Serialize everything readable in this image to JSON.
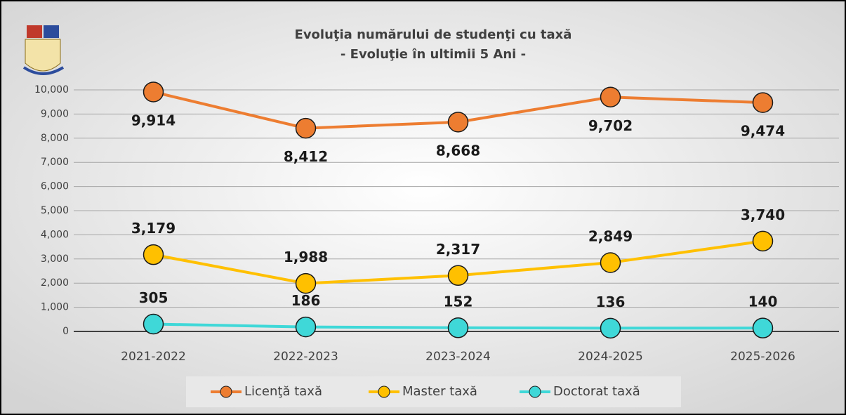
{
  "chart_data": {
    "type": "line",
    "title": "Evoluţia numărului de studenţi cu taxă",
    "subtitle": "- Evoluţie în ultimii 5 Ani -",
    "categories": [
      "2021-2022",
      "2022-2023",
      "2023-2024",
      "2024-2025",
      "2025-2026"
    ],
    "series": [
      {
        "name": "Licenţă taxă",
        "color": "#ed7d31",
        "values": [
          9914,
          8412,
          8668,
          9702,
          9474
        ],
        "value_labels": [
          "9,914",
          "8,412",
          "8,668",
          "9,702",
          "9,474"
        ]
      },
      {
        "name": "Master taxă",
        "color": "#ffc000",
        "values": [
          3179,
          1988,
          2317,
          2849,
          3740
        ],
        "value_labels": [
          "3,179",
          "1,988",
          "2,317",
          "2,849",
          "3,740"
        ]
      },
      {
        "name": "Doctorat taxă",
        "color": "#3fd8d8",
        "values": [
          305,
          186,
          152,
          136,
          140
        ]
      }
    ],
    "ylim": [
      0,
      10000
    ],
    "yticks": [
      0,
      {
        "value": 1000,
        "label": "1,000"
      },
      {
        "value": 2000,
        "label": "2,000"
      },
      {
        "value": 3000,
        "label": "3,000"
      },
      {
        "value": 4000,
        "label": "4,000"
      },
      {
        "value": 5000,
        "label": "5,000"
      },
      {
        "value": 6000,
        "label": "6,000"
      },
      {
        "value": 7000,
        "label": "7,000"
      },
      {
        "value": 8000,
        "label": "8,000"
      },
      {
        "value": 9000,
        "label": "9,000"
      },
      {
        "value": 10000,
        "label": "10,000"
      }
    ],
    "grid": true,
    "legend": "bottom"
  }
}
